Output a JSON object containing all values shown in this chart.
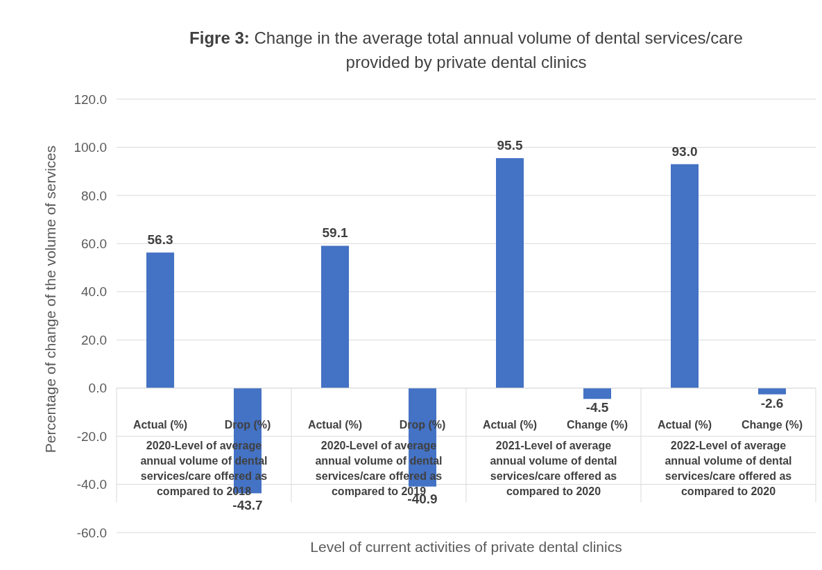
{
  "chart_data": {
    "type": "bar",
    "title": "Figre 3: Change in the average total annual volume of dental services/care provided by private dental clinics",
    "xlabel": "Level of current activities of private dental clinics",
    "ylabel": "Percentage of change of the volume of services",
    "categories": [
      "Actual (%)",
      "Drop (%)",
      "Actual (%)",
      "Drop (%)",
      "Actual (%)",
      "Change (%)",
      "Actual (%)",
      "Change (%)"
    ],
    "values": [
      56.3,
      -43.7,
      59.1,
      -40.9,
      95.5,
      -4.5,
      93.0,
      -2.6
    ],
    "value_labels": [
      "56.3",
      "-43.7",
      "59.1",
      "-40.9",
      "95.5",
      "-4.5",
      "93.0",
      "-2.6"
    ],
    "color": "#4472c4",
    "annotations": [
      "2020-Level of average annual volume of dental services/care offered as compared to 2018",
      "2020-Level of average annual volume of dental services/care offered as compared to 2019",
      "2021-Level of average annual volume of dental services/care offered as compared to 2020",
      "2022-Level of average annual volume of dental services/care offered as compared to 2020"
    ],
    "ylim": [
      -60,
      120
    ],
    "yticks": [
      {
        "value": -60,
        "label": "-60.0"
      },
      {
        "value": -40,
        "label": "-40.0"
      },
      {
        "value": -20,
        "label": "-20.0"
      },
      {
        "value": 0,
        "label": "0.0"
      },
      {
        "value": 20,
        "label": "20.0"
      },
      {
        "value": 40,
        "label": "40.0"
      },
      {
        "value": 60,
        "label": "60.0"
      },
      {
        "value": 80,
        "label": "80.0"
      },
      {
        "value": 100,
        "label": "100.0"
      },
      {
        "value": 120,
        "label": "120.0"
      }
    ],
    "grid": "y",
    "legend": false
  }
}
